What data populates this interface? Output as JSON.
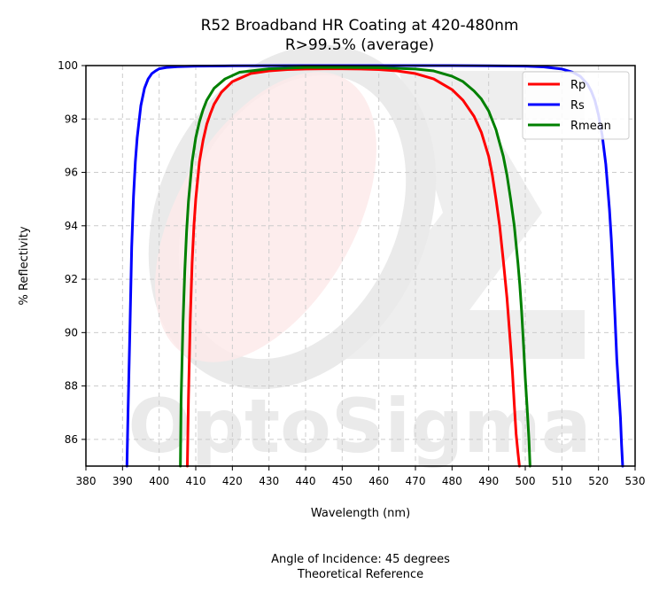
{
  "chart_data": {
    "type": "line",
    "title": "R52 Broadband HR Coating at 420-480nm",
    "subtitle": "R>99.5% (average)",
    "xlabel": "Wavelength (nm)",
    "ylabel": "% Reflectivity",
    "xlim": [
      380,
      530
    ],
    "ylim": [
      85,
      100
    ],
    "xticks": [
      380,
      390,
      400,
      410,
      420,
      430,
      440,
      450,
      460,
      470,
      480,
      490,
      500,
      510,
      520,
      530
    ],
    "yticks": [
      86,
      88,
      90,
      92,
      94,
      96,
      98,
      100
    ],
    "grid": true,
    "legend_position": "top-right",
    "series": [
      {
        "name": "Rp",
        "color": "#ff0000",
        "x": [
          407.7,
          408.0,
          408.5,
          409.0,
          409.5,
          410,
          411,
          412,
          413,
          414,
          415,
          417,
          420,
          425,
          430,
          435,
          440,
          445,
          450,
          455,
          460,
          465,
          470,
          475,
          480,
          483,
          486,
          488,
          490,
          491,
          492,
          493,
          494,
          495,
          496,
          496.5,
          497,
          497.5,
          498,
          498.4
        ],
        "y": [
          85,
          87.5,
          90.5,
          92.6,
          94.0,
          95.0,
          96.4,
          97.2,
          97.8,
          98.2,
          98.55,
          99.0,
          99.4,
          99.7,
          99.8,
          99.85,
          99.87,
          99.88,
          99.88,
          99.87,
          99.85,
          99.8,
          99.7,
          99.5,
          99.1,
          98.7,
          98.1,
          97.5,
          96.6,
          95.9,
          95.0,
          94.0,
          92.7,
          91.3,
          89.5,
          88.5,
          87.3,
          86.2,
          85.5,
          85
        ]
      },
      {
        "name": "Rs",
        "color": "#0000ff",
        "x": [
          391.2,
          391.5,
          392.0,
          392.5,
          393.0,
          393.5,
          394.0,
          395,
          396,
          397,
          398,
          399,
          400,
          402,
          405,
          410,
          420,
          440,
          460,
          480,
          490,
          500,
          505,
          510,
          513,
          515,
          517,
          518,
          519,
          520,
          521,
          522,
          523,
          523.5,
          524,
          524.5,
          525,
          525.5,
          526,
          526.3,
          526.6
        ],
        "y": [
          85,
          87.0,
          90.0,
          93.2,
          95.1,
          96.4,
          97.3,
          98.5,
          99.15,
          99.5,
          99.7,
          99.8,
          99.88,
          99.93,
          99.96,
          99.98,
          99.99,
          100,
          100,
          100,
          99.99,
          99.98,
          99.95,
          99.87,
          99.75,
          99.6,
          99.3,
          99.05,
          98.7,
          98.15,
          97.4,
          96.3,
          94.6,
          93.5,
          92.1,
          90.6,
          89.0,
          87.9,
          86.8,
          85.8,
          85
        ]
      },
      {
        "name": "Rmean",
        "color": "#008000",
        "x": [
          405.8,
          406.0,
          406.5,
          407.0,
          407.5,
          408,
          409,
          410,
          411,
          412,
          413,
          415,
          418,
          422,
          430,
          440,
          450,
          460,
          470,
          475,
          480,
          483,
          486,
          488,
          490,
          492,
          494,
          495,
          496,
          497,
          498,
          498.5,
          499,
          499.5,
          500,
          500.5,
          501,
          501.3
        ],
        "y": [
          85,
          87.5,
          90.3,
          92.3,
          93.8,
          94.9,
          96.4,
          97.3,
          97.9,
          98.35,
          98.7,
          99.15,
          99.5,
          99.75,
          99.88,
          99.93,
          99.93,
          99.92,
          99.87,
          99.8,
          99.6,
          99.4,
          99.05,
          98.75,
          98.3,
          97.6,
          96.6,
          95.9,
          95.0,
          94.0,
          92.6,
          91.8,
          90.8,
          89.6,
          88.3,
          87.2,
          86.0,
          85
        ]
      }
    ],
    "footer": [
      "Angle of Incidence: 45 degrees",
      "Theoretical Reference"
    ],
    "watermark": "OptoSigma"
  }
}
